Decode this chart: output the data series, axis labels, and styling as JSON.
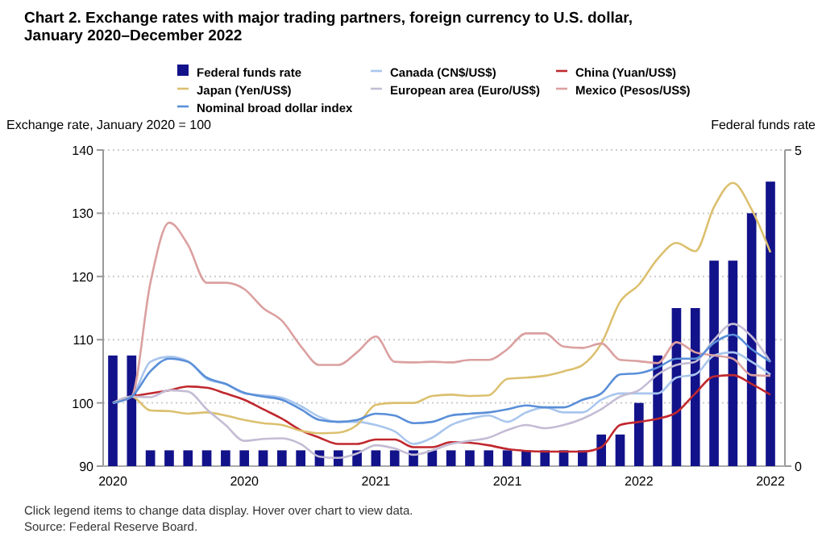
{
  "chart_data": {
    "type": "line",
    "title": "Chart 2. Exchange rates with major trading partners, foreign currency to U.S. dollar, January 2020–December 2022",
    "ylabel": "Exchange rate, January 2020 = 100",
    "y2label": "Federal funds rate",
    "categories": [
      "2020",
      null,
      null,
      null,
      null,
      null,
      null,
      "2020",
      null,
      null,
      null,
      null,
      null,
      null,
      "2021",
      null,
      null,
      null,
      null,
      null,
      null,
      "2021",
      null,
      null,
      null,
      null,
      null,
      null,
      "2022",
      null,
      null,
      null,
      null,
      null,
      null,
      "2022"
    ],
    "ylim": [
      90,
      140
    ],
    "yticks": [
      90,
      100,
      110,
      120,
      130,
      140
    ],
    "y2lim": [
      0,
      5
    ],
    "y2ticks": [
      0,
      5
    ],
    "grid": "y",
    "legend": "top",
    "series": [
      {
        "name": "Federal funds rate",
        "type": "bar",
        "axis": "y2",
        "color": "#12128a",
        "values": [
          1.75,
          1.75,
          0.25,
          0.25,
          0.25,
          0.25,
          0.25,
          0.25,
          0.25,
          0.25,
          0.25,
          0.25,
          0.25,
          0.25,
          0.25,
          0.25,
          0.25,
          0.25,
          0.25,
          0.25,
          0.25,
          0.25,
          0.25,
          0.25,
          0.25,
          0.25,
          0.5,
          0.5,
          1.0,
          1.75,
          2.5,
          2.5,
          3.25,
          3.25,
          4.0,
          4.5
        ]
      },
      {
        "name": "Canada (CN$/US$)",
        "color": "#a9c6ee",
        "values": [
          100,
          101,
          106.5,
          107.3,
          106.6,
          103.8,
          103,
          101.5,
          101.2,
          100.8,
          99.5,
          97.8,
          97,
          97,
          96.5,
          95.5,
          93.5,
          94.5,
          96.5,
          97.5,
          98,
          97,
          98.5,
          99.3,
          98.5,
          98.5,
          100.5,
          101.5,
          101.5,
          101.5,
          104,
          104.5,
          107.5,
          108,
          106.5,
          104.5
        ]
      },
      {
        "name": "China (Yuan/US$)",
        "color": "#c0282e",
        "values": [
          100,
          101,
          101.5,
          102,
          102.6,
          102.4,
          101.5,
          100.5,
          99,
          97.5,
          95.7,
          94.5,
          93.5,
          93.5,
          94.2,
          94.2,
          93,
          93,
          93.8,
          93.7,
          93.3,
          92.7,
          92.4,
          92.3,
          92.3,
          92.3,
          93,
          96.5,
          97,
          97.5,
          98.5,
          101.5,
          104.2,
          104.4,
          103,
          101.3
        ]
      },
      {
        "name": "Japan (Yen/US$)",
        "color": "#dcc070",
        "values": [
          100,
          101,
          98.8,
          98.7,
          98.3,
          98.5,
          98,
          97.3,
          96.8,
          96.5,
          95.6,
          95.2,
          95.3,
          96.5,
          99.7,
          100,
          100,
          101.1,
          101.3,
          101.1,
          101.2,
          103.8,
          104,
          104.3,
          105,
          106,
          109.4,
          116,
          118.7,
          122.8,
          125.3,
          124,
          131,
          134.8,
          130.6,
          123.8
        ]
      },
      {
        "name": "European area (Euro/US$)",
        "color": "#c4bcd4",
        "values": [
          100,
          101,
          100.9,
          102,
          101.8,
          99,
          96.5,
          94,
          94.3,
          94.4,
          93.5,
          91.5,
          91.3,
          92,
          93.3,
          92.8,
          91.8,
          92.5,
          93.5,
          94,
          94.5,
          95.7,
          96.5,
          96,
          96.5,
          97.5,
          99,
          101,
          102,
          104.5,
          106,
          106.5,
          110,
          112.5,
          110.5,
          106.5
        ]
      },
      {
        "name": "Mexico (Pesos/US$)",
        "color": "#dba0a0",
        "values": [
          100,
          101,
          119,
          128.5,
          125,
          119,
          119,
          118,
          115,
          113,
          109,
          106,
          106,
          108,
          110.5,
          106.5,
          106.4,
          106.5,
          106.4,
          106.8,
          106.8,
          108.5,
          111,
          111,
          108.9,
          108.7,
          109.4,
          106.8,
          106.6,
          106.3,
          109.6,
          108,
          107.5,
          107,
          104.4,
          104.3
        ]
      },
      {
        "name": "Nominal broad dollar index",
        "color": "#5a8fd8",
        "values": [
          100,
          101,
          105,
          107,
          106.5,
          104,
          103,
          101.6,
          101,
          100.5,
          99,
          97.3,
          97,
          97.3,
          98.3,
          98,
          96.8,
          97,
          98,
          98.3,
          98.5,
          99,
          99.6,
          99.3,
          99.3,
          100.5,
          101.5,
          104.5,
          104.7,
          105.6,
          107,
          107,
          109.5,
          110.8,
          108.5,
          106.5
        ]
      }
    ],
    "annotations": [
      "Click legend items to change data display. Hover over chart to view data.",
      "Source: Federal Reserve Board."
    ]
  }
}
